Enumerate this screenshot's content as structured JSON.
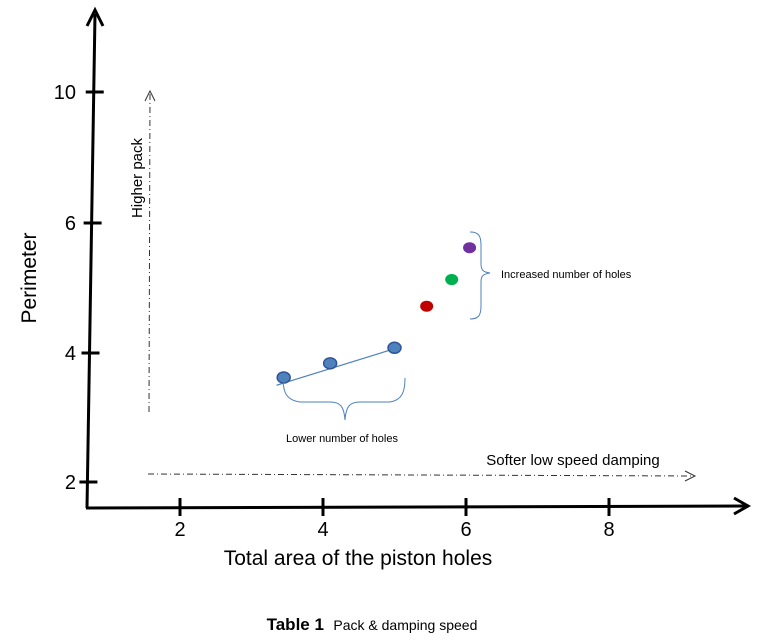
{
  "chart_data": {
    "type": "scatter",
    "title": "",
    "xlabel": "Total area of the piston holes",
    "ylabel": "Perimeter",
    "xlim": [
      0.8,
      10
    ],
    "x_ticks": [
      2,
      4,
      6,
      8
    ],
    "y_ticks": [
      2,
      4,
      6,
      10
    ],
    "y_scale": "nonlinear",
    "grid": false,
    "legend": "none",
    "points": [
      {
        "x": 3.45,
        "y": 3.62,
        "color": "#4f81bd"
      },
      {
        "x": 4.1,
        "y": 3.84,
        "color": "#4f81bd"
      },
      {
        "x": 5.0,
        "y": 4.08,
        "color": "#4f81bd"
      },
      {
        "x": 5.45,
        "y": 4.72,
        "color": "#c00000"
      },
      {
        "x": 5.8,
        "y": 5.13,
        "color": "#00b050"
      },
      {
        "x": 6.05,
        "y": 5.62,
        "color": "#7030a0"
      }
    ],
    "trend_line": {
      "x": [
        3.35,
        5.1
      ],
      "y": [
        3.5,
        4.1
      ]
    },
    "annotations": {
      "lower": "Lower number of holes",
      "increased": "Increased number of holes",
      "vertical_arrow": "Higher pack",
      "horizontal_arrow": "Softer low speed damping"
    }
  },
  "caption": {
    "bold": "Table 1",
    "text": "Pack & damping speed"
  }
}
